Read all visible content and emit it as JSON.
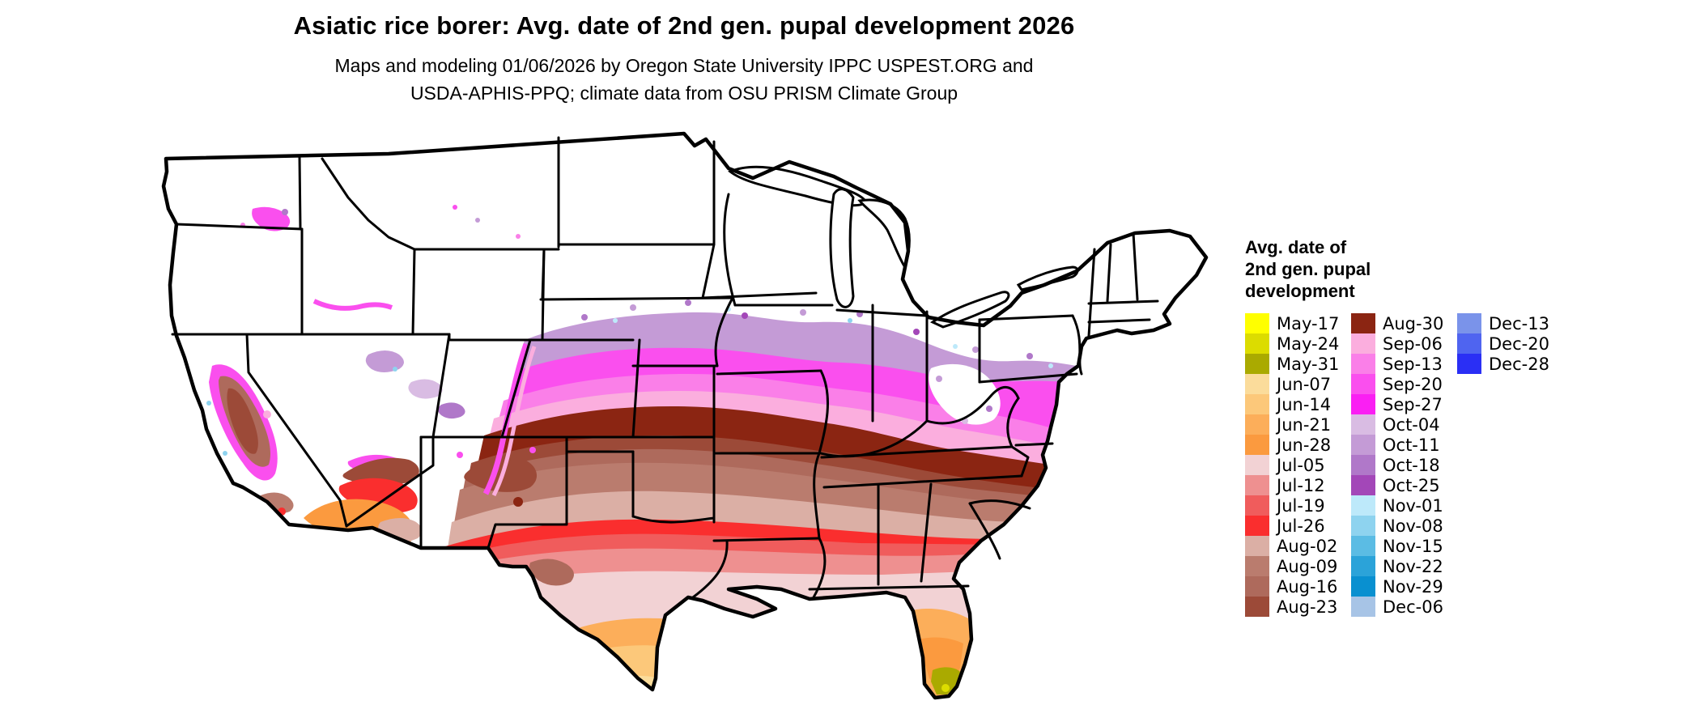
{
  "title": "Asiatic rice borer: Avg. date of 2nd gen. pupal development 2026",
  "subtitle_line1": "Maps and modeling 01/06/2026 by Oregon State University IPPC USPEST.ORG and",
  "subtitle_line2": "USDA-APHIS-PPQ; climate data from OSU PRISM Climate Group",
  "legend": {
    "title_lines": [
      "Avg. date of",
      "2nd gen. pupal",
      "development"
    ],
    "column_counts": [
      15,
      15,
      3
    ],
    "entries": [
      {
        "label": "May-17",
        "color": "#FFFF00"
      },
      {
        "label": "May-24",
        "color": "#DCDC00"
      },
      {
        "label": "May-31",
        "color": "#AAAA00"
      },
      {
        "label": "Jun-07",
        "color": "#FBDC9B"
      },
      {
        "label": "Jun-14",
        "color": "#FCC87A"
      },
      {
        "label": "Jun-21",
        "color": "#FCAE5A"
      },
      {
        "label": "Jun-28",
        "color": "#FB9A3F"
      },
      {
        "label": "Jul-05",
        "color": "#F2D2D4"
      },
      {
        "label": "Jul-12",
        "color": "#EE9090"
      },
      {
        "label": "Jul-19",
        "color": "#F05C5C"
      },
      {
        "label": "Jul-26",
        "color": "#FA2E2E"
      },
      {
        "label": "Aug-02",
        "color": "#DBAFA5"
      },
      {
        "label": "Aug-09",
        "color": "#BA7C6E"
      },
      {
        "label": "Aug-16",
        "color": "#AE6A5C"
      },
      {
        "label": "Aug-23",
        "color": "#9C4A38"
      },
      {
        "label": "Aug-30",
        "color": "#8B2512"
      },
      {
        "label": "Sep-06",
        "color": "#FBAEDE"
      },
      {
        "label": "Sep-13",
        "color": "#FA7FE8"
      },
      {
        "label": "Sep-20",
        "color": "#FA4FEE"
      },
      {
        "label": "Sep-27",
        "color": "#FA1FF3"
      },
      {
        "label": "Oct-04",
        "color": "#D9BCE3"
      },
      {
        "label": "Oct-11",
        "color": "#C49BD6"
      },
      {
        "label": "Oct-18",
        "color": "#B078C9"
      },
      {
        "label": "Oct-25",
        "color": "#A347B8"
      },
      {
        "label": "Nov-01",
        "color": "#BDE9FA"
      },
      {
        "label": "Nov-08",
        "color": "#8ED3EF"
      },
      {
        "label": "Nov-15",
        "color": "#5BBCE4"
      },
      {
        "label": "Nov-22",
        "color": "#2BA3D9"
      },
      {
        "label": "Nov-29",
        "color": "#0990D0"
      },
      {
        "label": "Dec-06",
        "color": "#A7C4E6"
      },
      {
        "label": "Dec-13",
        "color": "#7A93EA"
      },
      {
        "label": "Dec-20",
        "color": "#4F64F0"
      },
      {
        "label": "Dec-28",
        "color": "#2A2FF5"
      }
    ]
  },
  "chart_data": {
    "type": "heatmap",
    "subtype": "choropleth-map",
    "region": "Contiguous United States",
    "title": "Asiatic rice borer: Avg. date of 2nd gen. pupal development 2026",
    "variable": "Avg. date of 2nd gen. pupal development",
    "legend_position": "right",
    "categories": [
      "May-17",
      "May-24",
      "May-31",
      "Jun-07",
      "Jun-14",
      "Jun-21",
      "Jun-28",
      "Jul-05",
      "Jul-12",
      "Jul-19",
      "Jul-26",
      "Aug-02",
      "Aug-09",
      "Aug-16",
      "Aug-23",
      "Aug-30",
      "Sep-06",
      "Sep-13",
      "Sep-20",
      "Sep-27",
      "Oct-04",
      "Oct-11",
      "Oct-18",
      "Oct-25",
      "Nov-01",
      "Nov-08",
      "Nov-15",
      "Nov-22",
      "Nov-29",
      "Dec-06",
      "Dec-13",
      "Dec-20",
      "Dec-28"
    ],
    "colors": [
      "#FFFF00",
      "#DCDC00",
      "#AAAA00",
      "#FBDC9B",
      "#FCC87A",
      "#FCAE5A",
      "#FB9A3F",
      "#F2D2D4",
      "#EE9090",
      "#F05C5C",
      "#FA2E2E",
      "#DBAFA5",
      "#BA7C6E",
      "#AE6A5C",
      "#9C4A38",
      "#8B2512",
      "#FBAEDE",
      "#FA7FE8",
      "#FA4FEE",
      "#FA1FF3",
      "#D9BCE3",
      "#C49BD6",
      "#B078C9",
      "#A347B8",
      "#BDE9FA",
      "#8ED3EF",
      "#5BBCE4",
      "#2BA3D9",
      "#0990D0",
      "#A7C4E6",
      "#7A93EA",
      "#4F64F0",
      "#2A2FF5"
    ],
    "spatial_pattern_north_to_south": [
      "no-data white across northern tier and intermountain West",
      "Oct purples across lower Midwest and Mid-Atlantic",
      "Sep magenta/pink across Kansas-Missouri-Kentucky-Virginia",
      "Aug browns across Oklahoma-Tennessee-Carolinas",
      "Jul reds and pinks across Texas and Gulf states",
      "Jun oranges in south Texas and Florida peninsula",
      "May yellows at Florida tip and Keys"
    ]
  }
}
